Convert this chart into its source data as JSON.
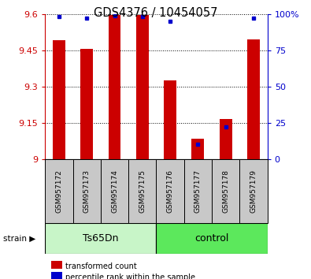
{
  "title": "GDS4376 / 10454057",
  "samples": [
    "GSM957172",
    "GSM957173",
    "GSM957174",
    "GSM957175",
    "GSM957176",
    "GSM957177",
    "GSM957178",
    "GSM957179"
  ],
  "red_values": [
    9.49,
    9.455,
    9.595,
    9.595,
    9.325,
    9.085,
    9.165,
    9.495
  ],
  "blue_values": [
    98,
    97,
    99,
    98,
    95,
    10,
    22,
    97
  ],
  "ylim_left": [
    9.0,
    9.6
  ],
  "ylim_right": [
    0,
    100
  ],
  "yticks_left": [
    9.0,
    9.15,
    9.3,
    9.45,
    9.6
  ],
  "yticks_right": [
    0,
    25,
    50,
    75,
    100
  ],
  "ytick_labels_left": [
    "9",
    "9.15",
    "9.3",
    "9.45",
    "9.6"
  ],
  "ytick_labels_right": [
    "0",
    "25",
    "50",
    "75",
    "100%"
  ],
  "bar_color": "#cc0000",
  "dot_color": "#0000cc",
  "bar_width": 0.45,
  "ts65dn_color": "#c8f5c8",
  "control_color": "#5ce85c",
  "sample_box_color": "#c8c8c8",
  "legend_red": "transformed count",
  "legend_blue": "percentile rank within the sample",
  "strain_label": "strain"
}
